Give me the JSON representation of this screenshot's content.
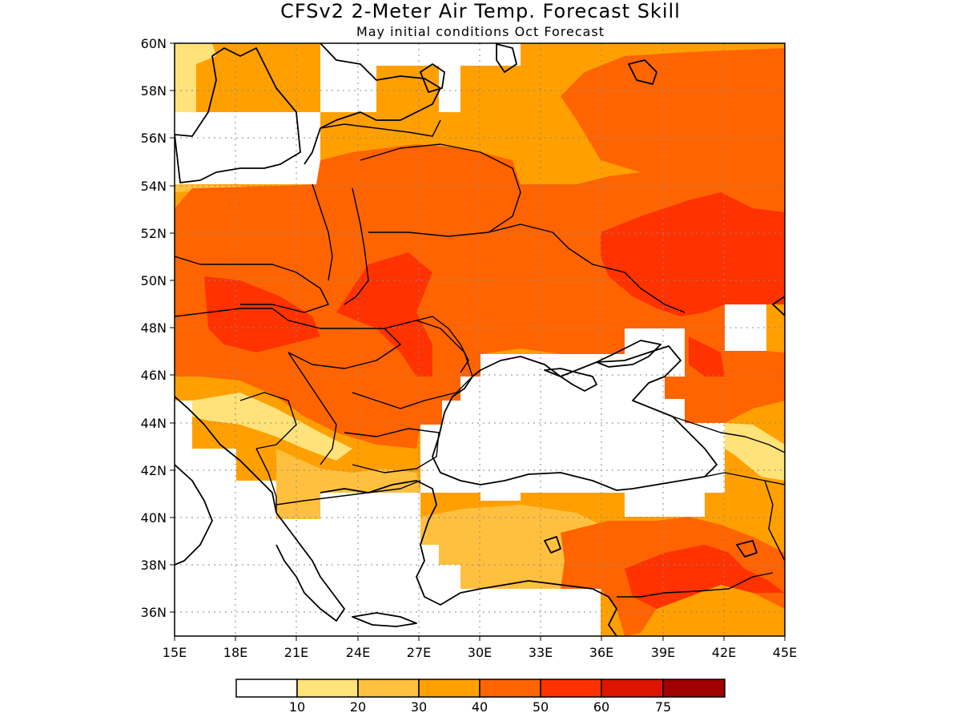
{
  "title": "CFSv2 2-Meter Air Temp. Forecast Skill",
  "subtitle": "May initial conditions  Oct Forecast",
  "lon_labels": [
    "15E",
    "18E",
    "21E",
    "24E",
    "27E",
    "30E",
    "33E",
    "36E",
    "39E",
    "42E",
    "45E"
  ],
  "lat_labels": [
    "60N",
    "58N",
    "56N",
    "54N",
    "52N",
    "50N",
    "48N",
    "46N",
    "44N",
    "42N",
    "40N",
    "38N",
    "36N"
  ],
  "colorbar": {
    "labels": [
      "10",
      "20",
      "30",
      "40",
      "50",
      "60",
      "75"
    ],
    "colors": [
      "#ffffff",
      "#ffe27a",
      "#ffc03f",
      "#ffa000",
      "#ff6400",
      "#ff3200",
      "#dc1400",
      "#a00000"
    ]
  },
  "colors": {
    "low": "#ffe27a",
    "mid_low": "#ffc03f",
    "mid": "#ffa000",
    "mid_high": "#ff6400",
    "high": "#ff3200"
  }
}
